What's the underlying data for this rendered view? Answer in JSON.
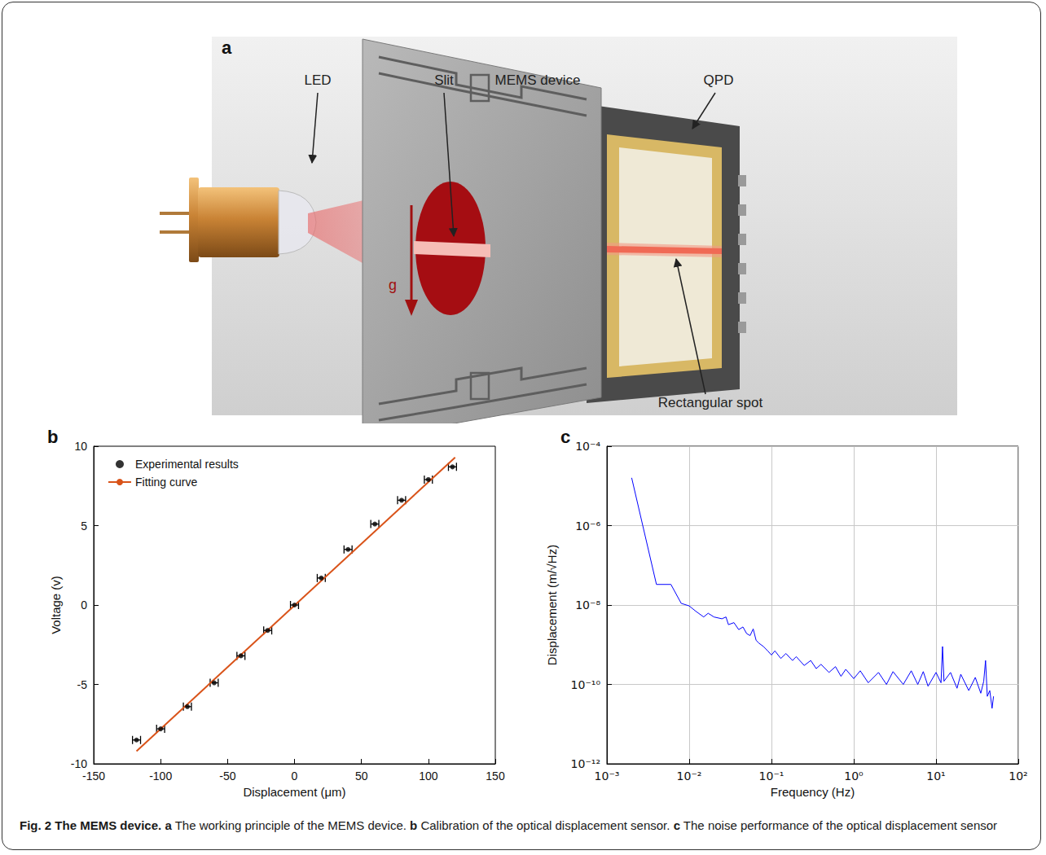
{
  "diagram": {
    "title": "a",
    "labels": {
      "led": "LED",
      "slit": "Slit",
      "mems": "MEMS device",
      "qpd": "QPD",
      "spot": "Rectangular spot",
      "gravity": "g"
    }
  },
  "chart_data": [
    {
      "type": "scatter",
      "title": "b",
      "xlabel": "Displacement (μm)",
      "ylabel": "Voltage (v)",
      "xlim": [
        -150,
        150
      ],
      "xticks": [
        -150,
        -100,
        -50,
        0,
        50,
        100,
        150
      ],
      "ylim": [
        -10,
        10
      ],
      "yticks": [
        -10,
        -5,
        0,
        5,
        10
      ],
      "grid": false,
      "legend": "upper left",
      "series": [
        {
          "name": "Experimental results",
          "type": "scatter",
          "color": "#000000",
          "marker": "circle",
          "x": [
            -118,
            -100,
            -80,
            -60,
            -40,
            -20,
            0,
            20,
            40,
            60,
            80,
            100,
            118
          ],
          "values": [
            -8.5,
            -7.8,
            -6.4,
            -4.9,
            -3.2,
            -1.6,
            0,
            1.7,
            3.5,
            5.1,
            6.6,
            7.9,
            8.7
          ],
          "x_error": [
            3,
            3,
            3,
            3,
            3,
            3,
            3,
            3,
            3,
            3,
            3,
            3,
            3
          ]
        },
        {
          "name": "Fitting curve",
          "type": "line",
          "color": "#d95319",
          "line_style": "solid",
          "x": [
            -118,
            120
          ],
          "values": [
            -9.2,
            9.3
          ]
        }
      ]
    },
    {
      "type": "line",
      "title": "c",
      "xlabel": "Frequency (Hz)",
      "ylabel": "Displacement (m/√Hz)",
      "log": true,
      "grid": true,
      "xlim": [
        0.001,
        100
      ],
      "xticks": [
        {
          "value": 0.001,
          "label": "10⁻³"
        },
        {
          "value": 0.01,
          "label": "10⁻²"
        },
        {
          "value": 0.1,
          "label": "10⁻¹"
        },
        {
          "value": 1,
          "label": "10⁰"
        },
        {
          "value": 10,
          "label": "10¹"
        },
        {
          "value": 100,
          "label": "10²"
        }
      ],
      "ylim": [
        1e-12,
        0.0001
      ],
      "yticks": [
        {
          "value": 1e-12,
          "label": "10⁻¹²"
        },
        {
          "value": 1e-10,
          "label": "10⁻¹⁰"
        },
        {
          "value": 1e-08,
          "label": "10⁻⁸"
        },
        {
          "value": 1e-06,
          "label": "10⁻⁶"
        },
        {
          "value": 0.0001,
          "label": "10⁻⁴"
        }
      ],
      "x": [
        0.002,
        0.004,
        0.006,
        0.008,
        0.01,
        0.012,
        0.015,
        0.017,
        0.02,
        0.025,
        0.028,
        0.03,
        0.035,
        0.04,
        0.045,
        0.05,
        0.055,
        0.06,
        0.065,
        0.07,
        0.08,
        0.09,
        0.1,
        0.11,
        0.13,
        0.15,
        0.18,
        0.2,
        0.25,
        0.3,
        0.35,
        0.4,
        0.5,
        0.6,
        0.7,
        0.8,
        1,
        1.2,
        1.5,
        2,
        2.5,
        3,
        4,
        5,
        6,
        7,
        8,
        10,
        11.5,
        12,
        12.5,
        15,
        18,
        20,
        25,
        30,
        35,
        38,
        40,
        42,
        45,
        48,
        50
      ],
      "series": [
        {
          "color": "#0000ff",
          "line_style": "solid",
          "values": [
            1.6e-05,
            3.3e-08,
            3.3e-08,
            1.1e-08,
            9.5e-09,
            7e-09,
            5e-09,
            6.2e-09,
            5e-09,
            4.5e-09,
            5e-09,
            3.2e-09,
            3.6e-09,
            2.4e-09,
            2.8e-09,
            1.9e-09,
            1.7e-09,
            2.5e-09,
            1.3e-09,
            1.1e-09,
            9e-10,
            7e-10,
            5.5e-10,
            7e-10,
            4.5e-10,
            6e-10,
            4e-10,
            5e-10,
            3e-10,
            4e-10,
            2.5e-10,
            3.2e-10,
            2e-10,
            2.8e-10,
            1.6e-10,
            2.4e-10,
            1.4e-10,
            2.2e-10,
            1.1e-10,
            2e-10,
            1e-10,
            2.1e-10,
            1e-10,
            2.2e-10,
            1e-10,
            2.1e-10,
            9e-11,
            2e-10,
            1.1e-10,
            9e-10,
            1.2e-10,
            2e-10,
            8e-11,
            1.8e-10,
            7e-11,
            1.5e-10,
            6e-11,
            1.2e-10,
            4e-10,
            5e-11,
            7e-11,
            2.5e-11,
            5e-11
          ]
        }
      ]
    }
  ],
  "caption": {
    "title": "Fig. 2 The MEMS device.",
    "items": [
      {
        "label": "a",
        "text": "The working principle of the MEMS device."
      },
      {
        "label": "b",
        "text": "Calibration of the optical displacement sensor."
      },
      {
        "label": "c",
        "text": "The noise performance of the optical displacement sensor"
      }
    ]
  }
}
